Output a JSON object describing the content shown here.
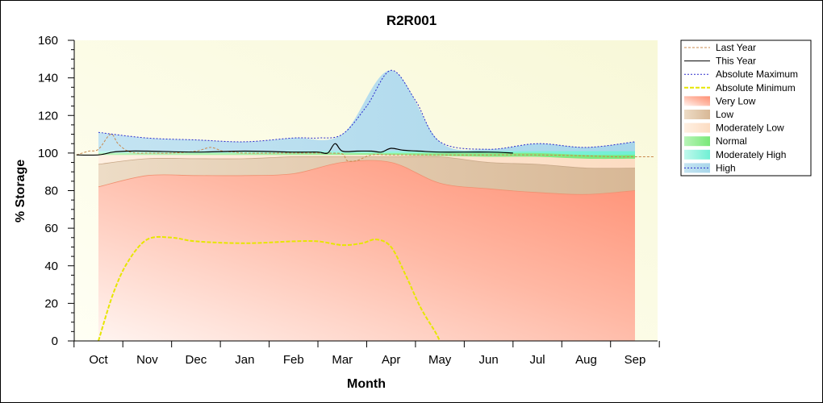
{
  "chart_data": {
    "type": "area",
    "title": "R2R001",
    "xlabel": "Month",
    "ylabel": "% Storage",
    "ylim": [
      0,
      160
    ],
    "yticks": [
      "0",
      "20",
      "40",
      "60",
      "80",
      "100",
      "120",
      "140",
      "160"
    ],
    "categories": [
      "Oct",
      "Nov",
      "Dec",
      "Jan",
      "Feb",
      "Mar",
      "Apr",
      "May",
      "Jun",
      "Jul",
      "Aug",
      "Sep"
    ],
    "legend_position": "right",
    "grid": false,
    "legend": [
      {
        "label": "Last Year",
        "kind": "line",
        "color": "#c8884c",
        "dash": "3,2"
      },
      {
        "label": "This Year",
        "kind": "line",
        "color": "#000000",
        "dash": ""
      },
      {
        "label": "Absolute Maximum",
        "kind": "line",
        "color": "#2a2acc",
        "dash": "2,2"
      },
      {
        "label": "Absolute Minimum",
        "kind": "line",
        "color": "#e6e600",
        "dash": "5,2"
      },
      {
        "label": "Very Low",
        "kind": "band",
        "color": "#ff8d73"
      },
      {
        "label": "Low",
        "kind": "band",
        "color": "#dcc0a0"
      },
      {
        "label": "Moderately Low",
        "kind": "band",
        "color": "#fde2cc"
      },
      {
        "label": "Normal",
        "kind": "band",
        "color": "#80e880"
      },
      {
        "label": "Moderately High",
        "kind": "band",
        "color": "#80f0d8"
      },
      {
        "label": "High",
        "kind": "band",
        "color": "#a8d8ee"
      }
    ],
    "bands_x": [
      0,
      1,
      2,
      3,
      4,
      5,
      6,
      7,
      8,
      9,
      10,
      11
    ],
    "bands": {
      "very_low": [
        82,
        88,
        88,
        88,
        89,
        95,
        95,
        84,
        81,
        79,
        78,
        80
      ],
      "low": [
        94,
        97,
        97,
        97,
        98,
        98,
        98,
        98,
        95,
        94,
        92,
        92
      ],
      "moderately_low": [
        99,
        99,
        99,
        99,
        99,
        99,
        99,
        98.5,
        98,
        98,
        97,
        97
      ],
      "normal": [
        100,
        100,
        100,
        100,
        100,
        100,
        100,
        100,
        100,
        100,
        99,
        99
      ],
      "moderately_high": [
        101,
        101,
        101,
        101,
        101,
        101,
        101,
        101,
        101,
        101,
        101,
        101
      ],
      "high": [
        111,
        108,
        107,
        106,
        108,
        110,
        144,
        106,
        102,
        105,
        103,
        106
      ]
    },
    "series": [
      {
        "name": "Last Year",
        "x": [
          -0.45,
          -0.2,
          0,
          0.25,
          0.4,
          0.6,
          0.8,
          1,
          1.5,
          2,
          2.3,
          2.55,
          2.8,
          3,
          4,
          4.7,
          5,
          5.1,
          5.3,
          5.6,
          6,
          7,
          8,
          9,
          10,
          10.6,
          11,
          11.4
        ],
        "y": [
          99,
          101,
          102,
          110,
          105,
          101,
          100,
          100,
          100,
          101,
          103,
          101,
          100.5,
          100,
          100,
          100,
          99.5,
          96,
          96,
          99,
          99,
          99,
          99,
          99,
          98.5,
          98,
          98,
          98
        ]
      },
      {
        "name": "This Year",
        "x": [
          -0.45,
          0,
          0.3,
          0.6,
          1,
          2,
          3,
          4,
          4.5,
          4.7,
          4.85,
          5,
          5.3,
          5.6,
          5.8,
          6,
          6.25,
          6.6,
          7,
          8,
          8.5
        ],
        "y": [
          99,
          99,
          100.5,
          101,
          101,
          100.5,
          101,
          100.5,
          100.5,
          100,
          105,
          101,
          101,
          101,
          100.5,
          102.5,
          101.5,
          101,
          100.5,
          100.5,
          100
        ]
      },
      {
        "name": "Absolute Maximum",
        "x": [
          0,
          1,
          2,
          3,
          4,
          4.5,
          5,
          5.5,
          6,
          6.5,
          7,
          8,
          9,
          10,
          11
        ],
        "y": [
          111,
          108,
          107,
          106,
          108,
          108,
          110,
          125,
          144,
          128,
          106,
          102,
          105,
          103,
          106
        ]
      },
      {
        "name": "Absolute Minimum",
        "x": [
          0,
          0.3,
          0.6,
          1,
          1.5,
          2,
          3,
          4,
          4.5,
          5,
          5.4,
          5.7,
          6,
          6.3,
          6.6,
          6.9,
          7
        ],
        "y": [
          0,
          25,
          42,
          54,
          55,
          53,
          52,
          53,
          53,
          51,
          52,
          54,
          50,
          35,
          18,
          5,
          0
        ]
      }
    ]
  }
}
